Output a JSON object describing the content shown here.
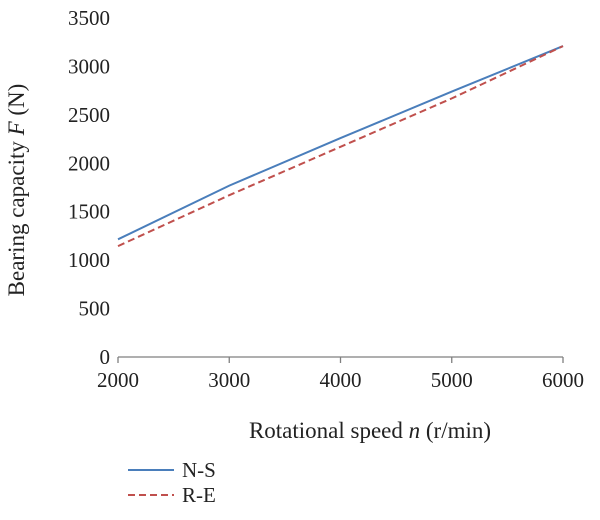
{
  "chart_data": {
    "type": "line",
    "xlabel": {
      "prefix": "Rotational speed ",
      "var": "n",
      "suffix": " (r/min)"
    },
    "ylabel": {
      "prefix": "Bearing capacity ",
      "var": "F",
      "suffix": " (N)"
    },
    "xlim": [
      2000,
      6000
    ],
    "ylim": [
      0,
      3500
    ],
    "xticks": [
      2000,
      3000,
      4000,
      5000,
      6000
    ],
    "yticks": [
      0,
      500,
      1000,
      1500,
      2000,
      2500,
      3000,
      3500
    ],
    "grid": false,
    "legend_position": "bottom-left",
    "series": [
      {
        "name": "N-S",
        "color": "#4a7ebb",
        "dash": "solid",
        "x": [
          2000,
          3000,
          4000,
          5000,
          6000
        ],
        "y": [
          1215,
          1770,
          2260,
          2740,
          3210
        ]
      },
      {
        "name": "R-E",
        "color": "#c0504d",
        "dash": "dashed",
        "x": [
          2000,
          3000,
          4000,
          5000,
          6000
        ],
        "y": [
          1145,
          1670,
          2170,
          2670,
          3210
        ]
      }
    ]
  }
}
